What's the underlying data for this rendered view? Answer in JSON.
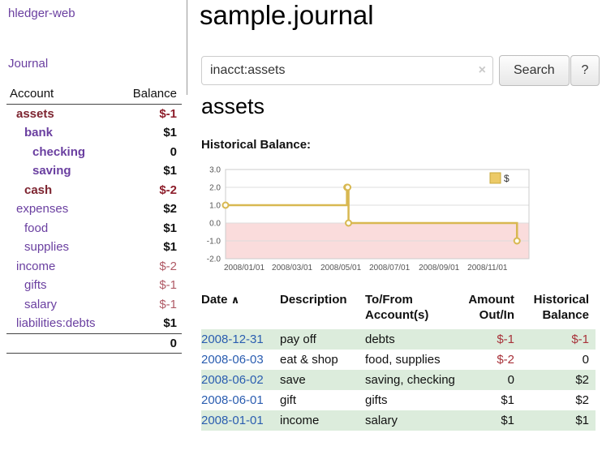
{
  "sidebar": {
    "brand": "hledger-web",
    "journal_label": "Journal",
    "header": {
      "account": "Account",
      "balance": "Balance"
    },
    "accounts": [
      {
        "name": "assets",
        "balance": "$-1"
      },
      {
        "name": "bank",
        "balance": "$1"
      },
      {
        "name": "checking",
        "balance": "0"
      },
      {
        "name": "saving",
        "balance": "$1"
      },
      {
        "name": "cash",
        "balance": "$-2"
      },
      {
        "name": "expenses",
        "balance": "$2"
      },
      {
        "name": "food",
        "balance": "$1"
      },
      {
        "name": "supplies",
        "balance": "$1"
      },
      {
        "name": "income",
        "balance": "$-2"
      },
      {
        "name": "gifts",
        "balance": "$-1"
      },
      {
        "name": "salary",
        "balance": "$-1"
      },
      {
        "name": "liabilities:debts",
        "balance": "$1"
      }
    ],
    "total": "0"
  },
  "main": {
    "title": "sample.journal",
    "search": {
      "value": "inacct:assets",
      "clear_icon": "×",
      "button_label": "Search",
      "help_label": "?"
    },
    "account_heading": "assets",
    "chart_label": "Historical Balance:"
  },
  "chart_data": {
    "type": "line",
    "title": "Historical Balance:",
    "step": "after",
    "series": [
      {
        "name": "$",
        "points": [
          {
            "date": "2008-01-01",
            "value": 1
          },
          {
            "date": "2008-06-01",
            "value": 2
          },
          {
            "date": "2008-06-02",
            "value": 2
          },
          {
            "date": "2008-06-03",
            "value": 0
          },
          {
            "date": "2008-12-31",
            "value": -1
          }
        ]
      }
    ],
    "x_ticks": [
      "2008/01/01",
      "2008/03/01",
      "2008/05/01",
      "2008/07/01",
      "2008/09/01",
      "2008/11/01"
    ],
    "y_ticks": [
      3.0,
      2.0,
      1.0,
      0.0,
      -1.0,
      -2.0
    ],
    "ylim": [
      -2,
      3
    ],
    "x_domain": [
      "2008-01-01",
      "2009-01-15"
    ],
    "legend": {
      "label": "$",
      "position": "top-right"
    },
    "line_color": "#d8b851",
    "legend_fill": "#ecca67",
    "legend_stroke": "#c7a83e",
    "negative_fill": "#fadcdc",
    "grid_color": "#dddddd",
    "border_color": "#cccccc"
  },
  "register": {
    "header": {
      "date": "Date",
      "sort_icon": "∧",
      "description": "Description",
      "tofrom_line1": "To/From",
      "tofrom_line2": "Account(s)",
      "amount_line1": "Amount",
      "amount_line2": "Out/In",
      "hist_line1": "Historical",
      "hist_line2": "Balance"
    },
    "rows": [
      {
        "date": "2008-12-31",
        "description": "pay off",
        "accounts": "debts",
        "amount": "$-1",
        "balance": "$-1"
      },
      {
        "date": "2008-06-03",
        "description": "eat & shop",
        "accounts": "food, supplies",
        "amount": "$-2",
        "balance": "0"
      },
      {
        "date": "2008-06-02",
        "description": "save",
        "accounts": "saving, checking",
        "amount": "0",
        "balance": "$2"
      },
      {
        "date": "2008-06-01",
        "description": "gift",
        "accounts": "gifts",
        "amount": "$1",
        "balance": "$2"
      },
      {
        "date": "2008-01-01",
        "description": "income",
        "accounts": "salary",
        "amount": "$1",
        "balance": "$1"
      }
    ]
  },
  "colors": {
    "link_purple": "#6a3fa0",
    "current_account_maroon": "#7d2430",
    "negative_bold": "#8e1f2c",
    "negative_muted": "#b05a66",
    "negative_register": "#a8323a",
    "date_link_blue": "#2a5db0",
    "row_green": "#dcecdc",
    "chart_line_gold": "#d8b851",
    "chart_negative_pink": "#fadcdc"
  }
}
